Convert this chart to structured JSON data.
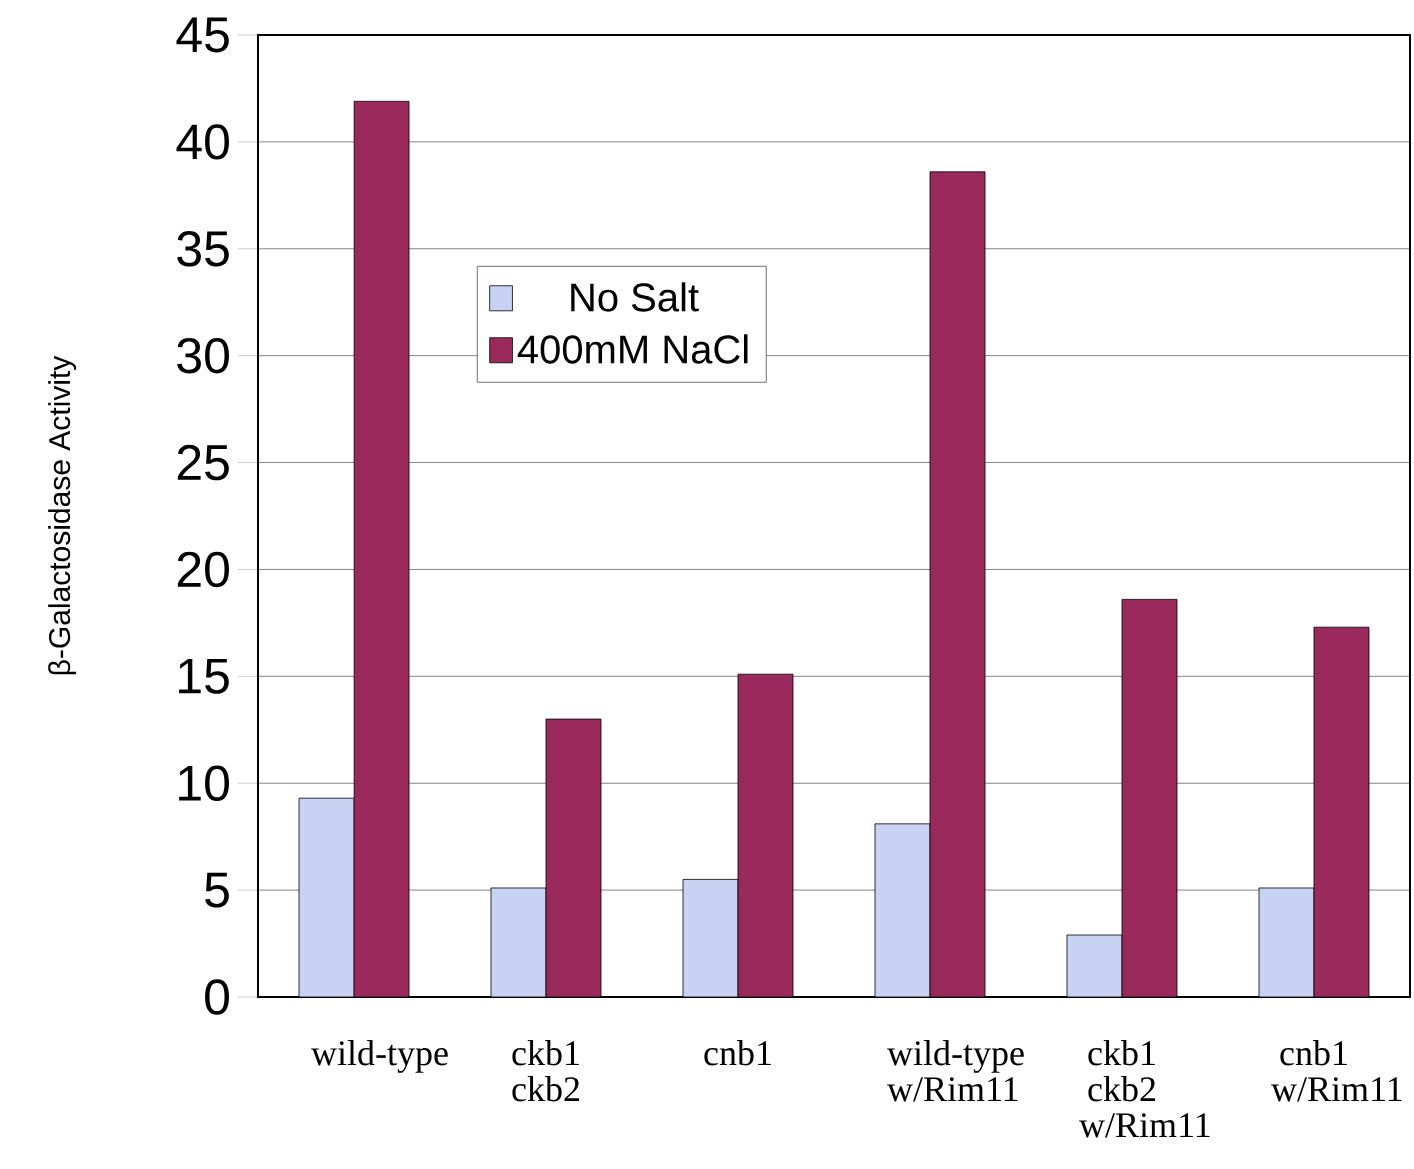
{
  "chart_data": {
    "type": "bar",
    "ylabel": "β-Galactosidase Activity",
    "categories": [
      "wild-type",
      "ckb1 ckb2",
      "cnb1",
      "wild-type w/Rim11",
      "ckb1 ckb2 w/Rim11",
      "cnb1 w/Rim11"
    ],
    "series": [
      {
        "name": "No Salt",
        "color": "#c8d2f2",
        "values": [
          9.3,
          5.1,
          5.5,
          8.1,
          2.9,
          5.1
        ]
      },
      {
        "name": "400mM NaCl",
        "color": "#9b2a5c",
        "values": [
          41.9,
          13.0,
          15.1,
          38.6,
          18.6,
          17.3
        ]
      }
    ],
    "ylim": [
      0,
      45
    ],
    "yticks": [
      0,
      5,
      10,
      15,
      20,
      25,
      30,
      35,
      40,
      45
    ],
    "grid": "y",
    "legend": "top left"
  }
}
